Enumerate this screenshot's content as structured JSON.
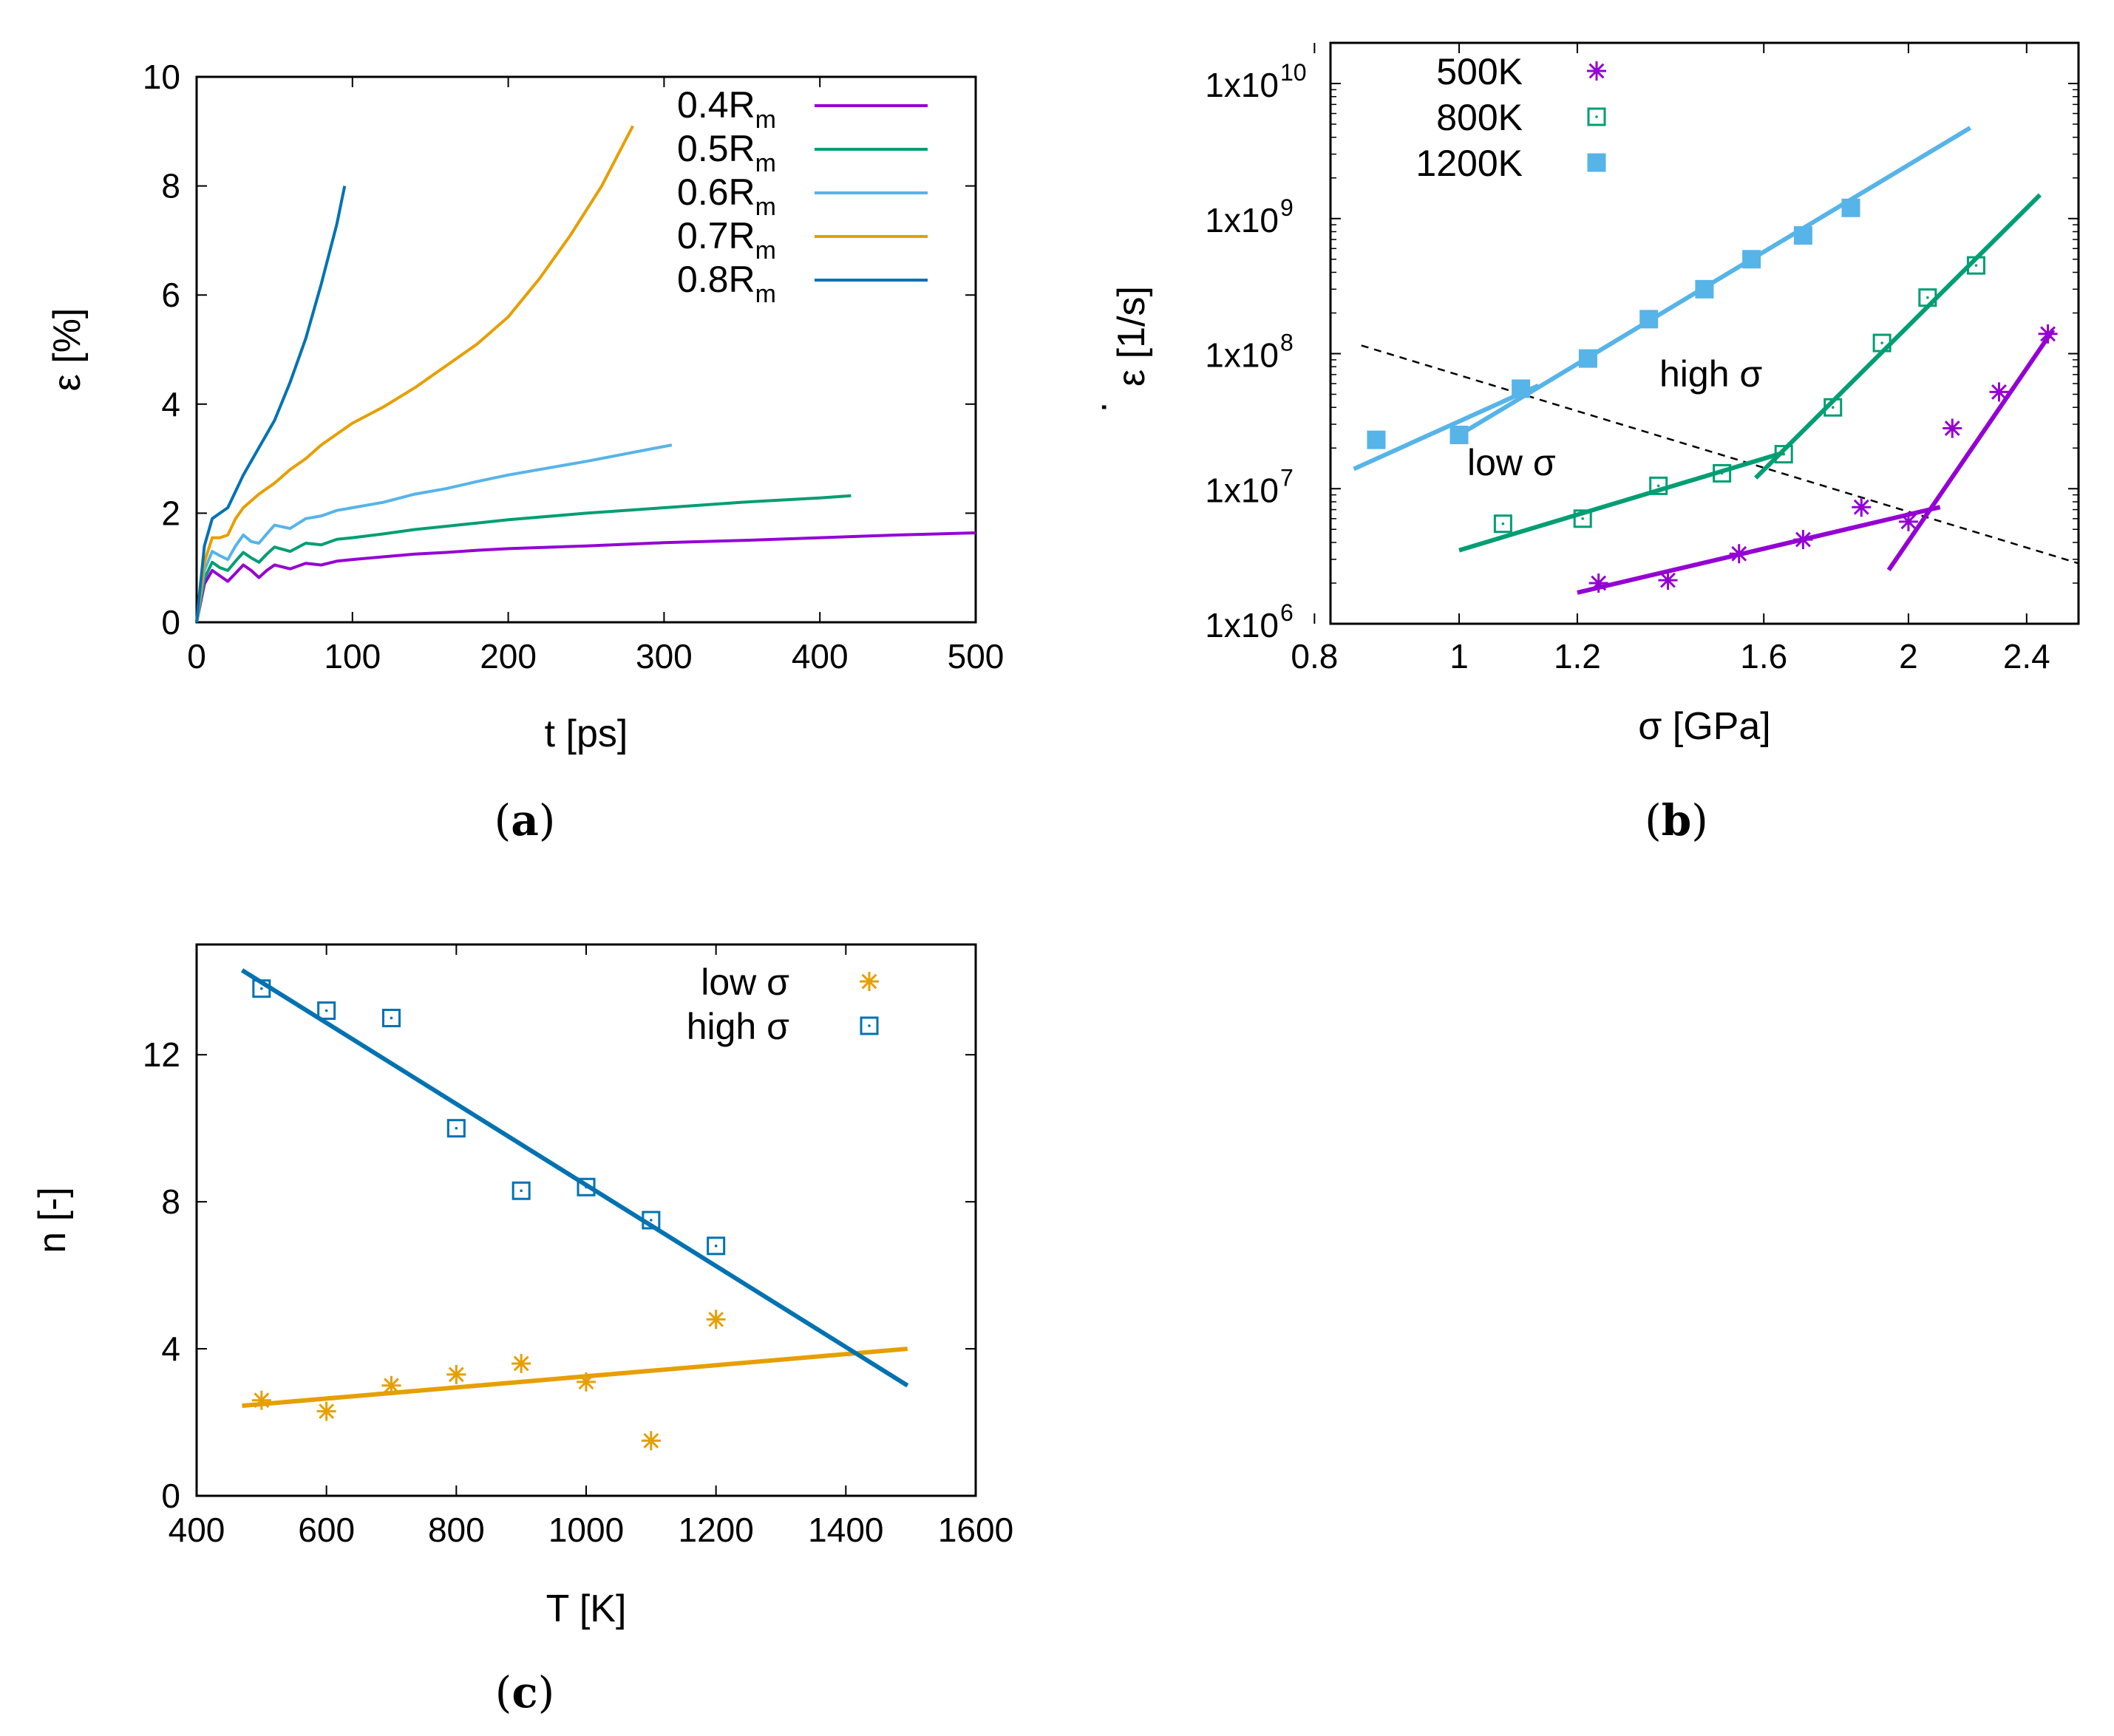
{
  "panels": [
    {
      "caption": "(a)",
      "caption_letter": "a"
    },
    {
      "caption": "(b)",
      "caption_letter": "b"
    },
    {
      "caption": "(c)",
      "caption_letter": "c"
    }
  ],
  "colors": {
    "purple": "#9400d3",
    "green": "#009e73",
    "lightblue": "#56b4e9",
    "orange": "#e69f00",
    "darkblue": "#0072b2",
    "black": "#000000"
  },
  "chart_data": [
    {
      "type": "line",
      "xlabel": "t [ps]",
      "ylabel": "ε [%]",
      "xlim": [
        0,
        500
      ],
      "ylim": [
        0,
        10
      ],
      "xticks": [
        0,
        100,
        200,
        300,
        400,
        500
      ],
      "yticks": [
        0,
        2,
        4,
        6,
        8,
        10
      ],
      "legend_position": "top-right",
      "series": [
        {
          "name": "0.4R",
          "name_sub": "m",
          "color": "purple",
          "x": [
            0,
            5,
            10,
            15,
            20,
            25,
            30,
            35,
            40,
            45,
            50,
            60,
            70,
            80,
            90,
            100,
            120,
            140,
            160,
            180,
            200,
            250,
            300,
            350,
            400,
            450,
            500
          ],
          "y": [
            0,
            0.7,
            0.95,
            0.85,
            0.75,
            0.9,
            1.05,
            0.95,
            0.82,
            0.95,
            1.05,
            0.98,
            1.08,
            1.05,
            1.12,
            1.15,
            1.2,
            1.25,
            1.28,
            1.32,
            1.35,
            1.4,
            1.46,
            1.5,
            1.55,
            1.6,
            1.64
          ]
        },
        {
          "name": "0.5R",
          "name_sub": "m",
          "color": "green",
          "x": [
            0,
            5,
            10,
            15,
            20,
            25,
            30,
            35,
            40,
            45,
            50,
            60,
            70,
            80,
            90,
            100,
            120,
            140,
            160,
            180,
            200,
            250,
            300,
            350,
            400,
            420
          ],
          "y": [
            0,
            0.8,
            1.1,
            1.0,
            0.95,
            1.12,
            1.28,
            1.18,
            1.1,
            1.25,
            1.38,
            1.3,
            1.45,
            1.42,
            1.52,
            1.55,
            1.62,
            1.7,
            1.76,
            1.82,
            1.88,
            2.0,
            2.1,
            2.2,
            2.28,
            2.32
          ]
        },
        {
          "name": "0.6R",
          "name_sub": "m",
          "color": "lightblue",
          "x": [
            0,
            5,
            10,
            15,
            20,
            25,
            30,
            35,
            40,
            45,
            50,
            60,
            70,
            80,
            90,
            100,
            120,
            140,
            160,
            180,
            200,
            250,
            305
          ],
          "y": [
            0,
            0.95,
            1.3,
            1.22,
            1.15,
            1.4,
            1.6,
            1.48,
            1.45,
            1.62,
            1.78,
            1.72,
            1.9,
            1.95,
            2.05,
            2.1,
            2.2,
            2.35,
            2.45,
            2.58,
            2.7,
            2.95,
            3.25
          ]
        },
        {
          "name": "0.7R",
          "name_sub": "m",
          "color": "orange",
          "x": [
            0,
            5,
            10,
            15,
            20,
            25,
            30,
            40,
            50,
            60,
            70,
            80,
            90,
            100,
            120,
            140,
            160,
            180,
            200,
            220,
            240,
            260,
            280
          ],
          "y": [
            0,
            1.1,
            1.55,
            1.55,
            1.6,
            1.9,
            2.1,
            2.35,
            2.55,
            2.8,
            3.0,
            3.25,
            3.45,
            3.65,
            3.95,
            4.3,
            4.7,
            5.1,
            5.6,
            6.3,
            7.1,
            8.0,
            9.1
          ]
        },
        {
          "name": "0.8R",
          "name_sub": "m",
          "color": "darkblue",
          "x": [
            0,
            5,
            10,
            15,
            20,
            25,
            30,
            40,
            50,
            60,
            70,
            80,
            90,
            95
          ],
          "y": [
            0,
            1.4,
            1.9,
            2.0,
            2.1,
            2.4,
            2.7,
            3.2,
            3.7,
            4.4,
            5.2,
            6.2,
            7.3,
            8.0
          ]
        }
      ]
    },
    {
      "type": "scatter",
      "xlabel": "σ [GPa]",
      "ylabel": "ε̇ [1/s]",
      "ylabel_main": "ε",
      "ylabel_dot": "·",
      "ylabel_unit": "[1/s]",
      "x_scale": "log",
      "y_scale": "log",
      "xlim": [
        0.82,
        2.6
      ],
      "ylim": [
        1000000,
        20000000000
      ],
      "xticks": [
        0.8,
        1,
        1.2,
        1.6,
        2,
        2.4
      ],
      "xtick_labels": [
        "0.8",
        "1",
        "1.2",
        "1.6",
        "2",
        "2.4"
      ],
      "yticks": [
        1000000,
        10000000,
        100000000,
        1000000000,
        10000000000
      ],
      "ytick_base": "1x10",
      "ytick_exponents": [
        "6",
        "7",
        "8",
        "9",
        "10"
      ],
      "legend_position": "top-left",
      "annotations": [
        "high σ",
        "low σ"
      ],
      "series": [
        {
          "name": "500K",
          "color": "purple",
          "marker": "asterisk",
          "x": [
            1.24,
            1.38,
            1.54,
            1.7,
            1.86,
            2.0,
            2.14,
            2.3,
            2.48
          ],
          "y": [
            2000000,
            2100000,
            3300000,
            4200000,
            7300000,
            5700000,
            28000000,
            52000000,
            140000000
          ]
        },
        {
          "name": "800K",
          "color": "green",
          "marker": "open-square",
          "x": [
            1.07,
            1.21,
            1.36,
            1.5,
            1.65,
            1.78,
            1.92,
            2.06,
            2.22
          ],
          "y": [
            5500000,
            6000000,
            10500000,
            13000000,
            18000000,
            40000000,
            120000000,
            260000000,
            450000000
          ],
          "fits": [
            {
              "x": [
                1.0,
                1.65
              ],
              "y": [
                3500000,
                18500000
              ]
            },
            {
              "x": [
                1.58,
                2.45
              ],
              "y": [
                12000000,
                1500000000
              ]
            }
          ]
        },
        {
          "name": "1200K",
          "color": "lightblue",
          "marker": "filled-square",
          "x": [
            0.88,
            1.0,
            1.1,
            1.22,
            1.34,
            1.46,
            1.57,
            1.7,
            1.83
          ],
          "y": [
            23000000,
            25000000,
            55000000,
            92000000,
            180000000,
            300000000,
            500000000,
            750000000,
            1200000000
          ],
          "fits": [
            {
              "x": [
                0.85,
                1.13
              ],
              "y": [
                14000000,
                58000000
              ]
            },
            {
              "x": [
                1.0,
                2.2
              ],
              "y": [
                25000000,
                4700000000
              ]
            }
          ]
        }
      ],
      "extra_fits": [
        {
          "series": "500K",
          "x": [
            1.2,
            2.1
          ],
          "y": [
            1700000,
            7300000
          ]
        },
        {
          "series": "500K",
          "x": [
            1.94,
            2.5
          ],
          "y": [
            2500000,
            150000000
          ]
        }
      ],
      "boundary_line": {
        "style": "dashed",
        "color": "black",
        "x": [
          0.86,
          2.6
        ],
        "y": [
          115000000,
          2800000
        ]
      }
    },
    {
      "type": "scatter",
      "xlabel": "T [K]",
      "ylabel": "n [-]",
      "xlim": [
        400,
        1600
      ],
      "ylim": [
        0,
        15
      ],
      "xticks": [
        400,
        600,
        800,
        1000,
        1200,
        1400,
        1600
      ],
      "yticks": [
        0,
        4,
        8,
        12
      ],
      "legend_position": "top-right",
      "series": [
        {
          "name": "low σ",
          "color": "orange",
          "marker": "asterisk",
          "x": [
            500,
            600,
            700,
            800,
            900,
            1000,
            1100,
            1200
          ],
          "y": [
            2.6,
            2.3,
            3.0,
            3.3,
            3.6,
            3.1,
            1.5,
            4.8
          ],
          "fit": {
            "x": [
              470,
              1495
            ],
            "y": [
              2.45,
              4.0
            ]
          }
        },
        {
          "name": "high σ",
          "color": "darkblue",
          "marker": "open-square",
          "x": [
            500,
            600,
            700,
            800,
            900,
            1000,
            1100,
            1200
          ],
          "y": [
            13.8,
            13.2,
            13.0,
            10.0,
            8.3,
            8.4,
            7.5,
            6.8
          ],
          "fit": {
            "x": [
              470,
              1495
            ],
            "y": [
              14.3,
              3.0
            ]
          }
        }
      ]
    }
  ]
}
